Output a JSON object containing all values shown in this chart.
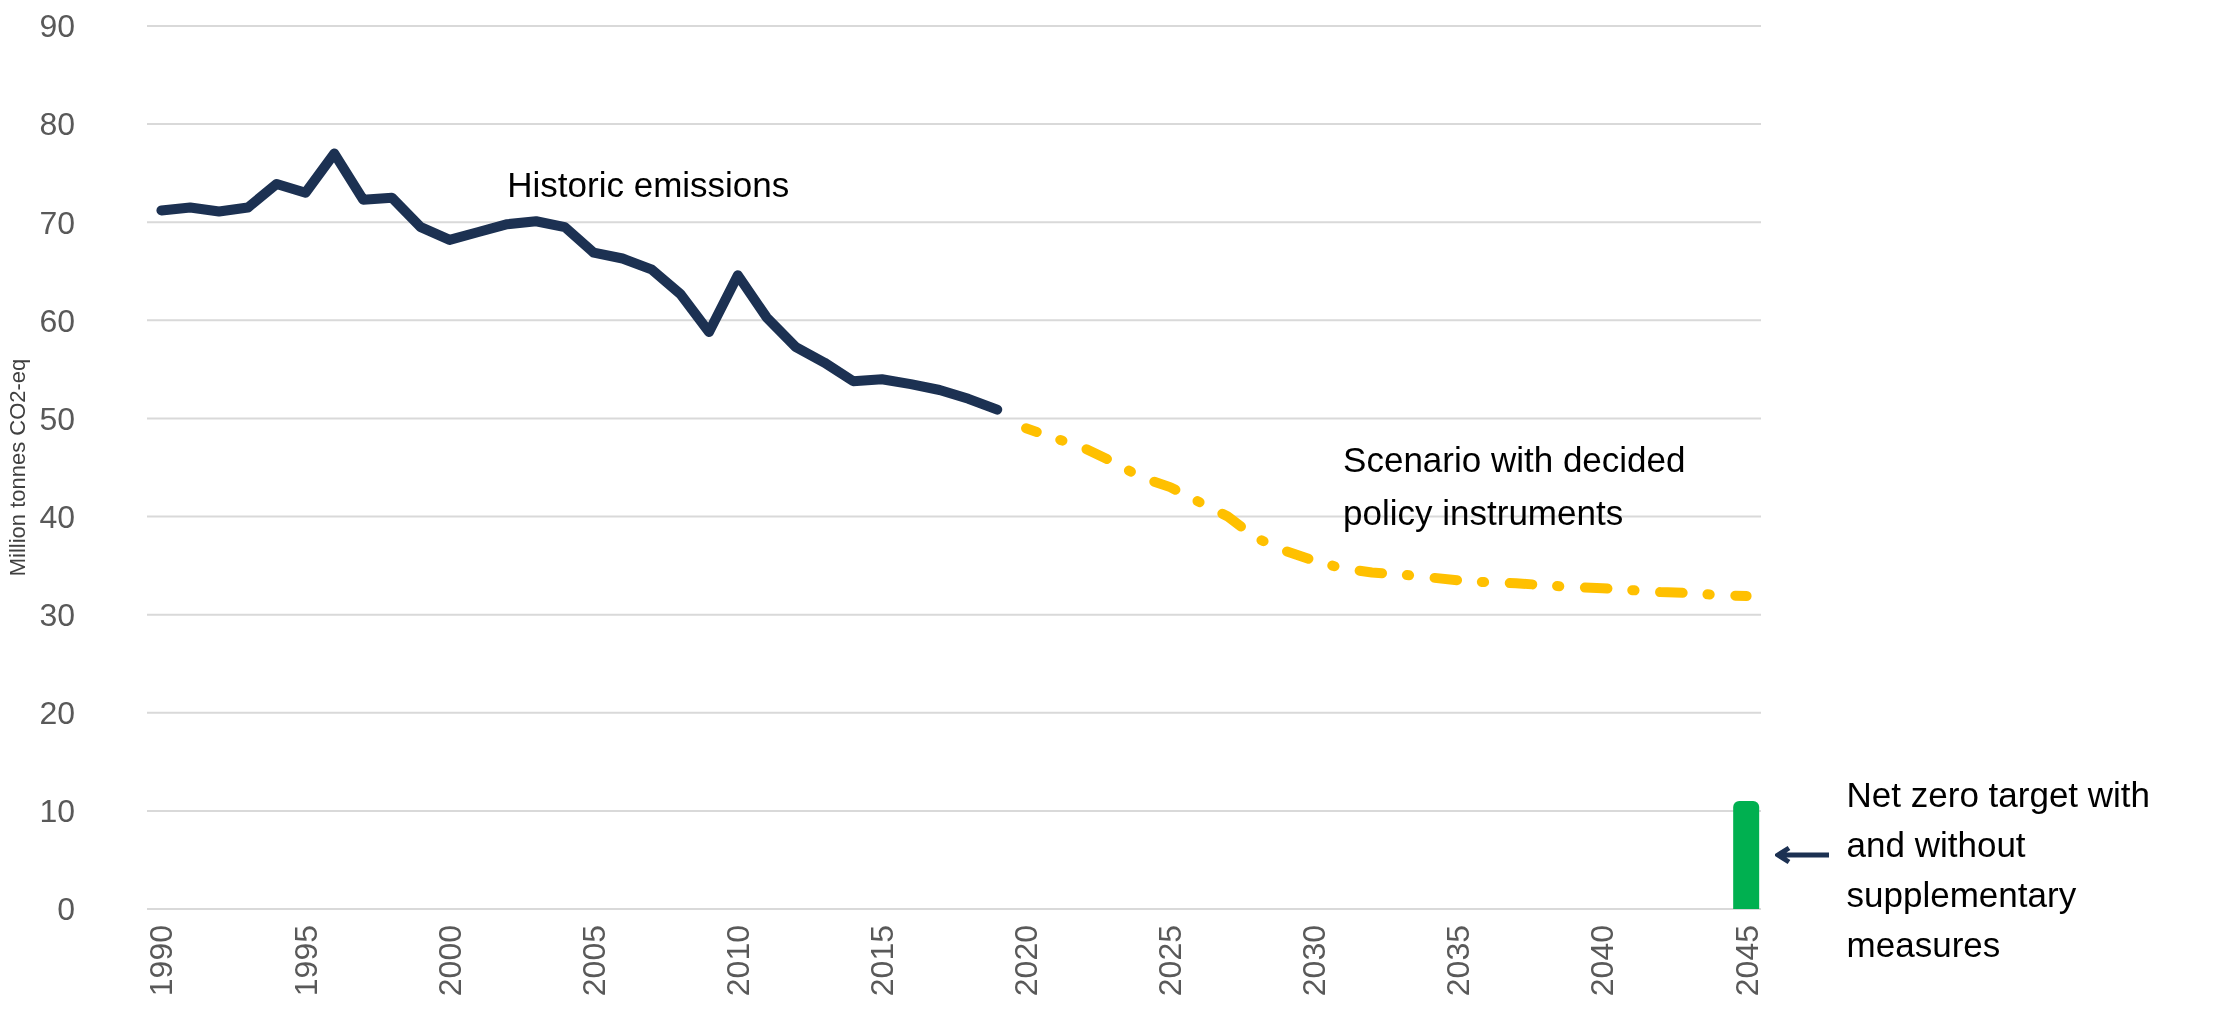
{
  "chart_data": {
    "type": "line",
    "ylabel": "Million tonnes CO2-eq",
    "categories": [
      "1990",
      null,
      null,
      null,
      null,
      "1995",
      null,
      null,
      null,
      null,
      "2000",
      null,
      null,
      null,
      null,
      "2005",
      null,
      null,
      null,
      null,
      "2010",
      null,
      null,
      null,
      null,
      "2015",
      null,
      null,
      null,
      null,
      "2020",
      null,
      null,
      null,
      null,
      "2025",
      null,
      null,
      null,
      null,
      "2030",
      null,
      null,
      null,
      null,
      "2035",
      null,
      null,
      null,
      null,
      "2040",
      null,
      null,
      null,
      null,
      "2045"
    ],
    "series": [
      {
        "name": "Historic emissions",
        "color": "#1c3152",
        "line_style": "solid",
        "values": [
          71.2,
          71.5,
          71.1,
          71.5,
          73.9,
          73,
          77,
          72.3,
          72.5,
          69.5,
          68.2,
          69,
          69.8,
          70.1,
          69.5,
          66.9,
          66.3,
          65.2,
          62.7,
          58.8,
          64.6,
          60.3,
          57.3,
          55.7,
          53.8,
          54,
          53.5,
          52.9,
          52,
          50.9,
          null,
          null,
          null,
          null,
          null,
          null,
          null,
          null,
          null,
          null,
          null,
          null,
          null,
          null,
          null,
          null,
          null,
          null,
          null,
          null,
          null,
          null,
          null,
          null,
          null,
          null
        ]
      },
      {
        "name": "Scenario with decided policy instruments",
        "color": "#ffc000",
        "line_style": "dashed",
        "values": [
          null,
          null,
          null,
          null,
          null,
          null,
          null,
          null,
          null,
          null,
          null,
          null,
          null,
          null,
          null,
          null,
          null,
          null,
          null,
          null,
          null,
          null,
          null,
          null,
          null,
          null,
          null,
          null,
          null,
          null,
          49,
          48,
          47,
          45.6,
          44,
          43,
          41.5,
          40,
          37.8,
          36.5,
          35.5,
          34.7,
          34.3,
          34.1,
          33.8,
          33.5,
          33.3,
          33.2,
          33,
          32.8,
          32.7,
          32.5,
          32.3,
          32.2,
          32,
          31.9
        ]
      },
      {
        "type": "bar",
        "color": "#00b050",
        "values": [
          null,
          null,
          null,
          null,
          null,
          null,
          null,
          null,
          null,
          null,
          null,
          null,
          null,
          null,
          null,
          null,
          null,
          null,
          null,
          null,
          null,
          null,
          null,
          null,
          null,
          null,
          null,
          null,
          null,
          null,
          null,
          null,
          null,
          null,
          null,
          null,
          null,
          null,
          null,
          null,
          null,
          null,
          null,
          null,
          null,
          null,
          null,
          null,
          null,
          null,
          null,
          null,
          null,
          null,
          null,
          11
        ]
      }
    ],
    "annotations": [
      "Net zero target with and without supplementary measures"
    ],
    "ylim": [
      0,
      90
    ],
    "yticks": [
      0,
      10,
      20,
      30,
      40,
      50,
      60,
      70,
      80,
      90
    ],
    "grid": "y",
    "marker": "none"
  }
}
